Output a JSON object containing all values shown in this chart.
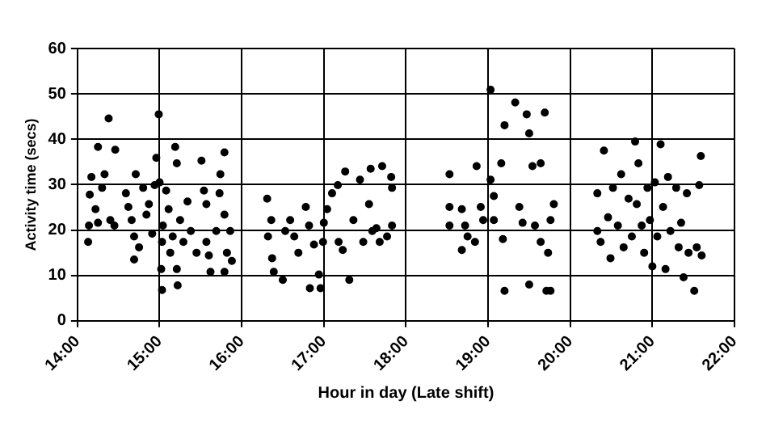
{
  "chart_data": {
    "type": "scatter",
    "xlabel": "Hour in day (Late shift)",
    "ylabel": "Activity time (secs)",
    "xlim": [
      14,
      22
    ],
    "ylim": [
      0,
      60
    ],
    "xticks": [
      {
        "value": 14,
        "label": "14:00"
      },
      {
        "value": 15,
        "label": "15:00"
      },
      {
        "value": 16,
        "label": "16:00"
      },
      {
        "value": 17,
        "label": "17:00"
      },
      {
        "value": 18,
        "label": "18:00"
      },
      {
        "value": 19,
        "label": "19:00"
      },
      {
        "value": 20,
        "label": "20:00"
      },
      {
        "value": 21,
        "label": "21:00"
      },
      {
        "value": 22,
        "label": "22:00"
      }
    ],
    "yticks": [
      0,
      10,
      20,
      30,
      40,
      50,
      60
    ],
    "grid": true,
    "legend": false,
    "marker": "circle",
    "series": [
      {
        "color": "#000000",
        "x": [
          14.13,
          14.14,
          14.15,
          14.17,
          14.22,
          14.25,
          14.3,
          14.33,
          14.38,
          14.25,
          14.46,
          14.4,
          14.45,
          14.59,
          14.62,
          14.66,
          14.69,
          14.69,
          14.71,
          14.75,
          14.8,
          14.84,
          14.87,
          14.91,
          14.94,
          14.96,
          14.99,
          15,
          15.03,
          15.04,
          15.02,
          15.03,
          15.08,
          15.11,
          15.13,
          15.16,
          15.19,
          15.21,
          15.21,
          15.22,
          15.25,
          15.29,
          15.34,
          15.38,
          15.45,
          15.51,
          15.54,
          15.57,
          15.57,
          15.6,
          15.62,
          15.69,
          15.73,
          15.74,
          15.79,
          15.79,
          15.82,
          15.86,
          15.88,
          15.79,
          16.31,
          16.32,
          16.36,
          16.37,
          16.39,
          16.5,
          16.53,
          16.59,
          16.64,
          16.69,
          16.78,
          16.82,
          16.83,
          16.88,
          16.94,
          16.96,
          16.99,
          17,
          17.04,
          17.1,
          17.17,
          17.18,
          17.23,
          17.26,
          17.31,
          17.36,
          17.44,
          17.48,
          17.55,
          17.57,
          17.59,
          17.64,
          17.71,
          17.68,
          17.77,
          17.82,
          17.83,
          17.83,
          18.53,
          18.53,
          18.53,
          18.68,
          18.72,
          18.75,
          18.68,
          18.84,
          18.86,
          18.91,
          18.94,
          19.03,
          19.03,
          19.07,
          19.07,
          19.16,
          19.18,
          19.2,
          19.2,
          19.33,
          19.38,
          19.42,
          19.47,
          19.5,
          19.5,
          19.54,
          19.57,
          19.64,
          19.64,
          19.69,
          19.71,
          19.76,
          19.73,
          19.76,
          19.8,
          20.33,
          20.33,
          20.37,
          20.41,
          20.46,
          20.49,
          20.52,
          20.58,
          20.62,
          20.65,
          20.71,
          20.75,
          20.79,
          20.81,
          20.83,
          20.87,
          20.9,
          20.94,
          20.97,
          21,
          21.03,
          21.06,
          21.1,
          21.13,
          21.16,
          21.19,
          21.22,
          21.29,
          21.32,
          21.35,
          21.38,
          21.42,
          21.44,
          21.51,
          21.54,
          21.57,
          21.59,
          21.6
        ],
        "values": [
          17.4,
          21,
          27.8,
          31.7,
          24.6,
          21.6,
          29.3,
          32.3,
          44.6,
          38.3,
          37.7,
          22.2,
          21,
          28.1,
          25.1,
          22.2,
          18.6,
          13.5,
          32.3,
          16.2,
          29.3,
          23.4,
          25.7,
          19.2,
          29.9,
          35.9,
          45.5,
          30.5,
          17.4,
          21,
          11.4,
          6.8,
          28.7,
          24.6,
          15,
          18.6,
          38.3,
          34.7,
          11.4,
          7.8,
          22.2,
          17.4,
          26.3,
          19.8,
          15,
          35.3,
          28.7,
          25.7,
          17.4,
          14.4,
          10.8,
          19.8,
          28.1,
          32.3,
          37.1,
          23.4,
          15,
          19.8,
          13.2,
          10.8,
          26.9,
          18.6,
          22.2,
          13.8,
          10.8,
          9,
          19.8,
          22.2,
          18.6,
          15,
          25.1,
          21,
          7.2,
          16.8,
          10.2,
          7.2,
          17.4,
          21.6,
          24.6,
          28.1,
          29.9,
          17.4,
          15.6,
          32.9,
          9,
          22.2,
          31.1,
          17.4,
          25.7,
          33.5,
          19.8,
          20.4,
          34.1,
          17.4,
          18.6,
          31.7,
          21,
          29.3,
          32.3,
          25.1,
          21,
          24.6,
          21,
          18.6,
          15.6,
          17.4,
          34.1,
          25.1,
          22.2,
          50.9,
          31.1,
          27.5,
          22.2,
          34.7,
          18,
          6.6,
          43.1,
          48.1,
          25.1,
          21.6,
          45.5,
          41.3,
          8,
          34.1,
          21,
          34.7,
          17.4,
          45.9,
          6.6,
          6.6,
          15,
          22.2,
          25.7,
          28.1,
          19.8,
          17.4,
          37.5,
          22.8,
          13.8,
          29.3,
          21,
          32.3,
          16.2,
          26.9,
          18.6,
          39.5,
          25.7,
          34.7,
          21,
          15,
          29.3,
          22.2,
          12,
          30.5,
          18.6,
          38.9,
          25.1,
          11.4,
          31.7,
          19.8,
          29.3,
          16.2,
          21.6,
          9.6,
          28.1,
          15,
          6.6,
          16.2,
          29.9,
          36.3,
          14.4
        ]
      }
    ]
  }
}
